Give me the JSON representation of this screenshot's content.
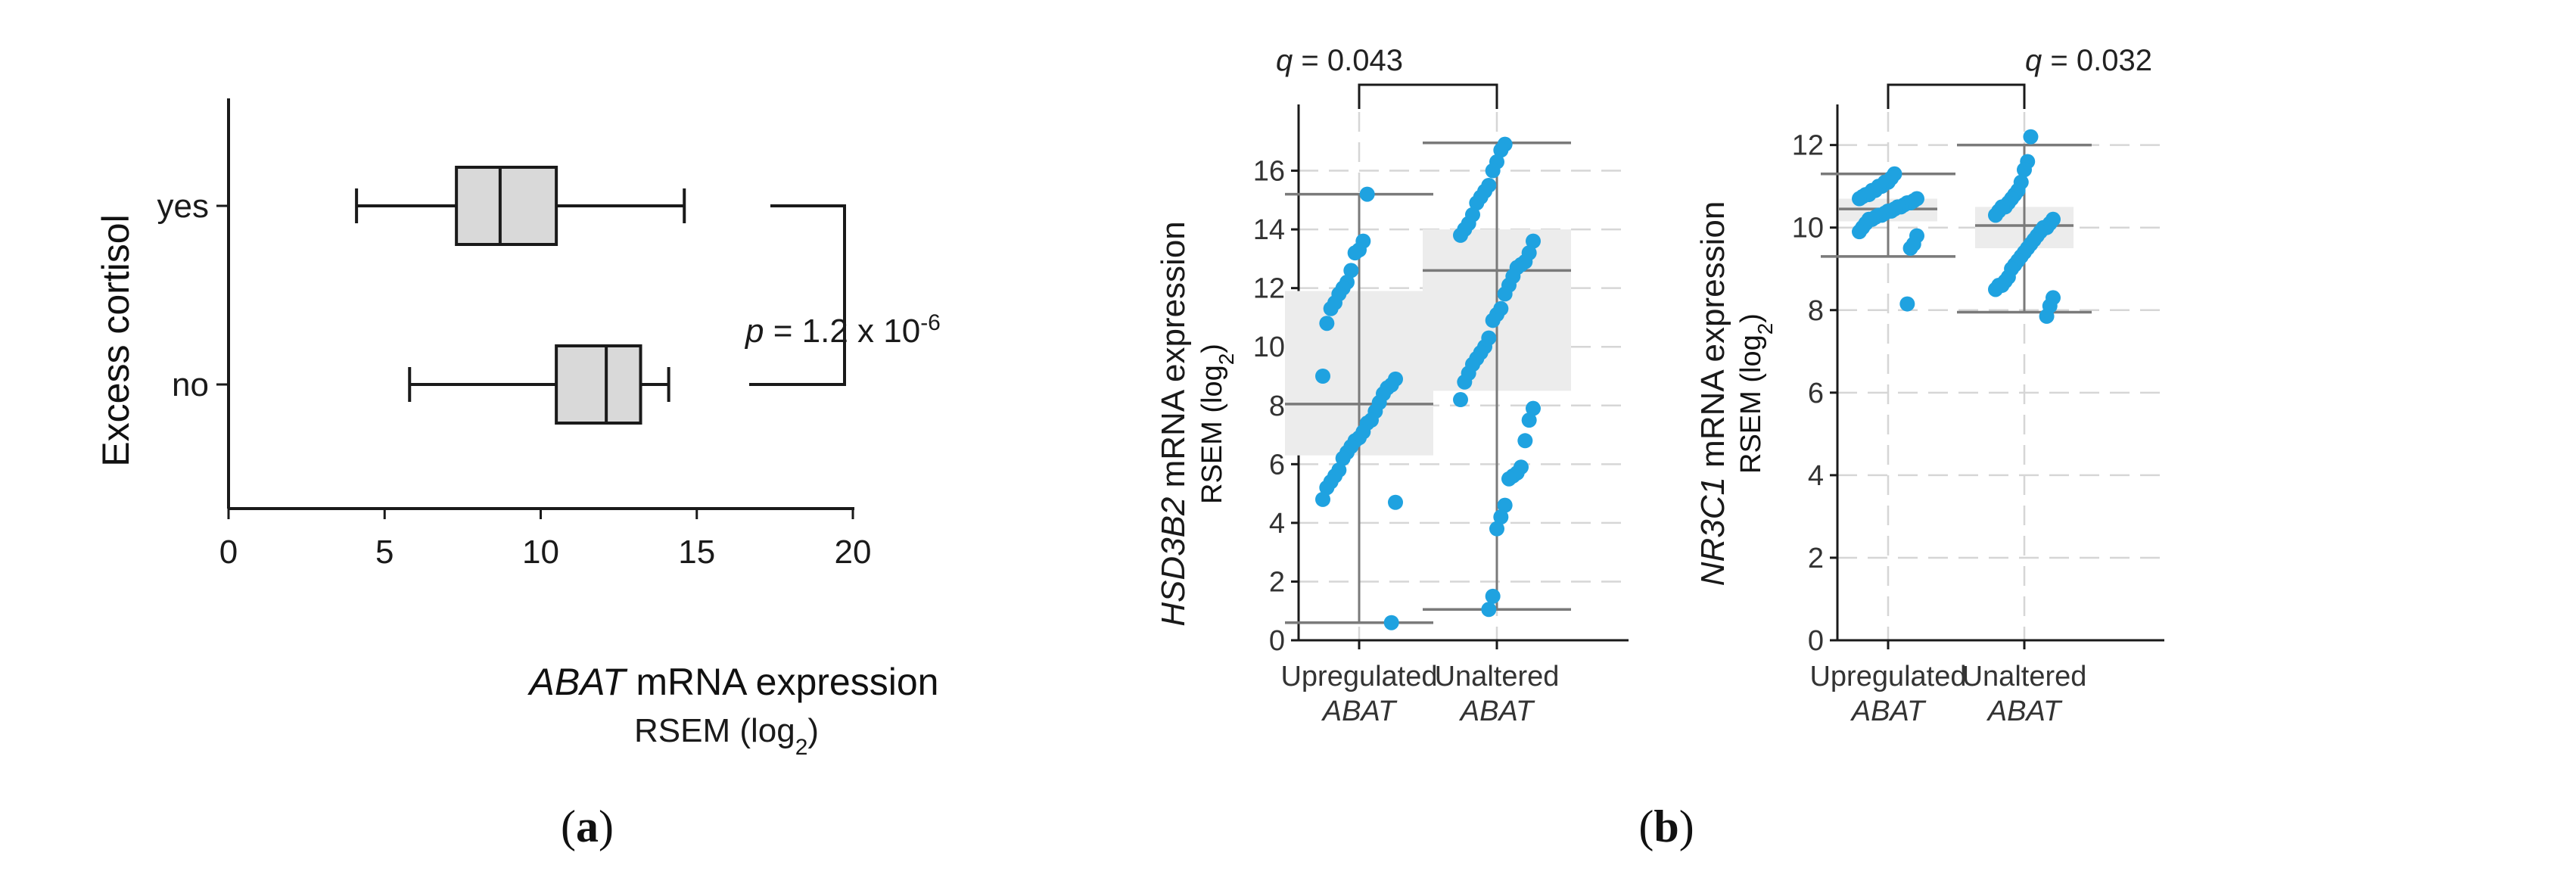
{
  "chart_data": [
    {
      "id": "a",
      "type": "boxplot",
      "orientation": "horizontal",
      "panel_label": "a",
      "ylabel": "Excess cortisol",
      "xlabel_gene": "ABAT",
      "xlabel_rest": " mRNA expression",
      "xsub": "RSEM (log",
      "xsub_idx": "2",
      "xsub_close": ")",
      "xlim": [
        0,
        20
      ],
      "xticks": [
        0,
        5,
        10,
        15,
        20
      ],
      "categories": [
        "yes",
        "no"
      ],
      "boxes": [
        {
          "label": "yes",
          "whisker_low": 4.1,
          "q1": 7.3,
          "median": 8.7,
          "q3": 10.5,
          "whisker_high": 14.6
        },
        {
          "label": "no",
          "whisker_low": 5.8,
          "q1": 10.5,
          "median": 12.1,
          "q3": 13.2,
          "whisker_high": 14.1
        }
      ],
      "stat_prefix": "p",
      "stat_value": " = 1.2 x 10",
      "stat_exp": "-6"
    },
    {
      "id": "b1",
      "type": "box_strip",
      "ylabel_gene": "HSD3B2",
      "ylabel_rest": " mRNA expression",
      "ysub": "RSEM (log",
      "ysub_idx": "2",
      "ysub_close": ")",
      "ylim": [
        0,
        18
      ],
      "yticks": [
        0,
        2,
        4,
        6,
        8,
        10,
        12,
        14,
        16
      ],
      "categories": [
        {
          "line1": "Upregulated",
          "line2": "ABAT"
        },
        {
          "line1": "Unaltered",
          "line2": "ABAT"
        }
      ],
      "boxes": [
        {
          "whisker_low": 0.6,
          "q1": 6.3,
          "median": 8.05,
          "q3": 11.9,
          "whisker_high": 15.2
        },
        {
          "whisker_low": 1.05,
          "q1": 8.5,
          "median": 12.6,
          "q3": 14.0,
          "whisker_high": 16.95
        }
      ],
      "points": [
        [
          15.2,
          13.6,
          13.3,
          13.2,
          12.6,
          12.2,
          12.0,
          11.8,
          11.5,
          11.3,
          10.8,
          9.0,
          8.9,
          8.7,
          8.6,
          8.4,
          8.1,
          7.8,
          7.5,
          7.4,
          7.1,
          6.9,
          6.8,
          6.6,
          6.4,
          6.2,
          5.8,
          5.6,
          5.4,
          5.2,
          4.8,
          4.7,
          0.6
        ],
        [
          16.9,
          16.7,
          16.3,
          16.0,
          15.5,
          15.3,
          15.1,
          14.9,
          14.5,
          14.2,
          14.0,
          13.8,
          13.6,
          13.2,
          12.9,
          12.8,
          12.7,
          12.4,
          12.1,
          11.8,
          11.3,
          11.1,
          10.9,
          10.3,
          10.0,
          9.8,
          9.6,
          9.4,
          9.1,
          8.8,
          8.2,
          7.9,
          7.5,
          6.8,
          5.9,
          5.7,
          5.6,
          5.5,
          4.6,
          4.2,
          3.8,
          1.5,
          1.05
        ]
      ],
      "stat_prefix": "q",
      "stat_value": " = 0.043"
    },
    {
      "id": "b2",
      "type": "box_strip",
      "panel_label": "b",
      "ylabel_gene": "NR3C1",
      "ylabel_rest": " mRNA expression",
      "ysub": "RSEM (log",
      "ysub_idx": "2",
      "ysub_close": ")",
      "ylim": [
        0,
        12.8
      ],
      "yticks": [
        0,
        2,
        4,
        6,
        8,
        10,
        12
      ],
      "categories": [
        {
          "line1": "Upregulated",
          "line2": "ABAT"
        },
        {
          "line1": "Unaltered",
          "line2": "ABAT"
        }
      ],
      "boxes": [
        {
          "whisker_low": 9.3,
          "q1": 10.15,
          "median": 10.45,
          "q3": 10.7,
          "whisker_high": 11.3
        },
        {
          "whisker_low": 7.95,
          "q1": 9.5,
          "median": 10.05,
          "q3": 10.5,
          "whisker_high": 12.0
        }
      ],
      "points": [
        [
          11.3,
          11.2,
          11.1,
          11.1,
          11.0,
          11.0,
          10.9,
          10.9,
          10.8,
          10.8,
          10.75,
          10.7,
          10.7,
          10.65,
          10.6,
          10.6,
          10.55,
          10.5,
          10.5,
          10.45,
          10.4,
          10.4,
          10.35,
          10.3,
          10.3,
          10.25,
          10.2,
          10.2,
          10.1,
          10.0,
          9.9,
          9.8,
          9.6,
          9.5,
          8.15
        ],
        [
          12.2,
          11.6,
          11.4,
          11.1,
          10.9,
          10.8,
          10.7,
          10.6,
          10.5,
          10.5,
          10.4,
          10.3,
          10.2,
          10.1,
          10.0,
          10.0,
          9.9,
          9.8,
          9.7,
          9.6,
          9.5,
          9.4,
          9.3,
          9.2,
          9.1,
          9.0,
          8.8,
          8.7,
          8.6,
          8.6,
          8.5,
          8.3,
          8.1,
          7.85
        ]
      ],
      "stat_prefix": "q",
      "stat_value": " = 0.032"
    }
  ],
  "colors": {
    "point": "#1fa2e0",
    "box_fill_b": "#ececec",
    "box_fill_a": "#d9d9d9",
    "whisker_b": "#7a7a7a",
    "grid": "#d6d6d6",
    "axis": "#1a1a1a"
  }
}
